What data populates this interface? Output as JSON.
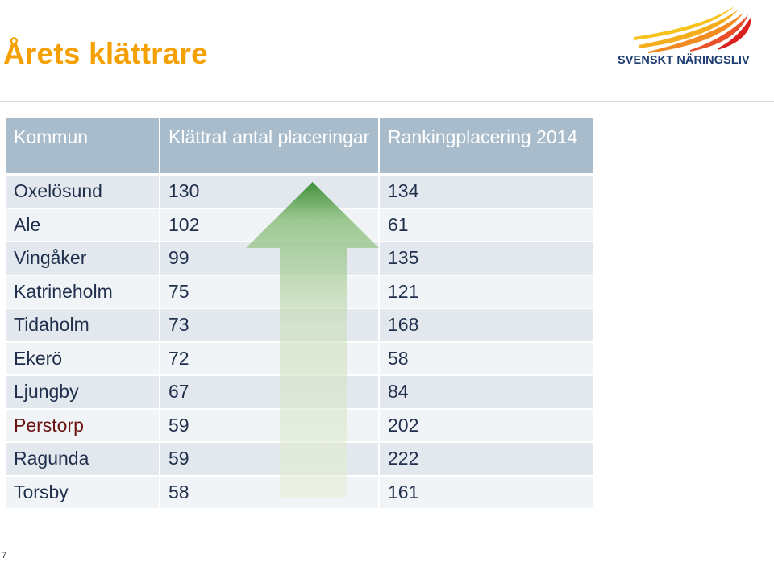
{
  "page": {
    "title": "Årets klättrare",
    "page_number": "7"
  },
  "logo": {
    "text": "SVENSKT NÄRINGSLIV",
    "colors": [
      "#f7c21b",
      "#f29a1e",
      "#e8502a",
      "#d9201e"
    ]
  },
  "table": {
    "headers": [
      "Kommun",
      "Klättrat antal placeringar",
      "Rankingplacering 2014"
    ],
    "rows": [
      {
        "kommun": "Oxelösund",
        "klattrat": "130",
        "ranking": "134"
      },
      {
        "kommun": "Ale",
        "klattrat": "102",
        "ranking": "61"
      },
      {
        "kommun": "Vingåker",
        "klattrat": "99",
        "ranking": "135"
      },
      {
        "kommun": "Katrineholm",
        "klattrat": "75",
        "ranking": "121"
      },
      {
        "kommun": "Tidaholm",
        "klattrat": "73",
        "ranking": "168"
      },
      {
        "kommun": "Ekerö",
        "klattrat": "72",
        "ranking": "58"
      },
      {
        "kommun": "Ljungby",
        "klattrat": "67",
        "ranking": "84"
      },
      {
        "kommun": "Perstorp",
        "klattrat": "59",
        "ranking": "202",
        "highlighted": true
      },
      {
        "kommun": "Ragunda",
        "klattrat": "59",
        "ranking": "222"
      },
      {
        "kommun": "Torsby",
        "klattrat": "58",
        "ranking": "161"
      }
    ]
  },
  "colors": {
    "title": "#f4a000",
    "header_bg": "#a9bccb",
    "row_odd": "#e3e8ee",
    "row_even": "#f1f4f7",
    "text": "#1f2f4c",
    "highlight_text": "#6a1111",
    "arrow_top": "#3f8f3a",
    "arrow_bottom": "#e6f0d6"
  }
}
